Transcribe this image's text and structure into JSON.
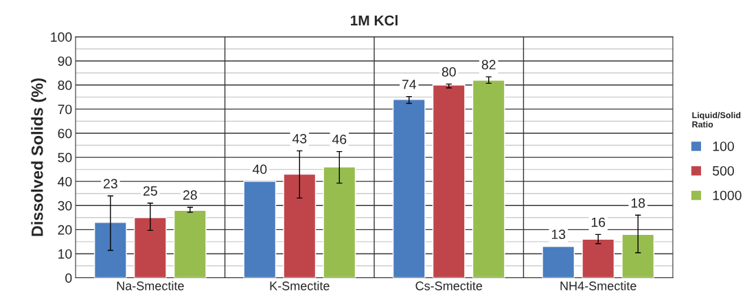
{
  "chart_data": {
    "type": "bar",
    "title": "1M KCl",
    "ylabel": "Dissolved Solids (%)",
    "legend_title": "Liquid/Solid\nRatio",
    "categories": [
      "Na-Smectite",
      "K-Smectite",
      "Cs-Smectite",
      "NH4-Smectite"
    ],
    "series": [
      {
        "name": "100",
        "color": "#4a7dbf",
        "values": [
          23,
          40,
          74,
          13
        ],
        "errors": [
          [
            11.4,
            34
          ],
          null,
          [
            72.4,
            75.2
          ],
          null
        ]
      },
      {
        "name": "500",
        "color": "#c0454a",
        "values": [
          25,
          43,
          80,
          16
        ],
        "errors": [
          [
            19.7,
            31
          ],
          [
            33.1,
            52.7
          ],
          [
            78.8,
            80.4
          ],
          [
            14.2,
            18
          ]
        ]
      },
      {
        "name": "1000",
        "color": "#97bd4f",
        "values": [
          28,
          46,
          82,
          18
        ],
        "errors": [
          [
            27.2,
            29.3
          ],
          [
            39.3,
            52.4
          ],
          [
            80.7,
            83.4
          ],
          [
            10.4,
            26
          ]
        ]
      }
    ],
    "ylim": [
      0,
      100
    ],
    "yticks": [
      0,
      10,
      20,
      30,
      40,
      50,
      60,
      70,
      80,
      90,
      100
    ],
    "grid": true,
    "legend": "right",
    "data_labels": true
  }
}
